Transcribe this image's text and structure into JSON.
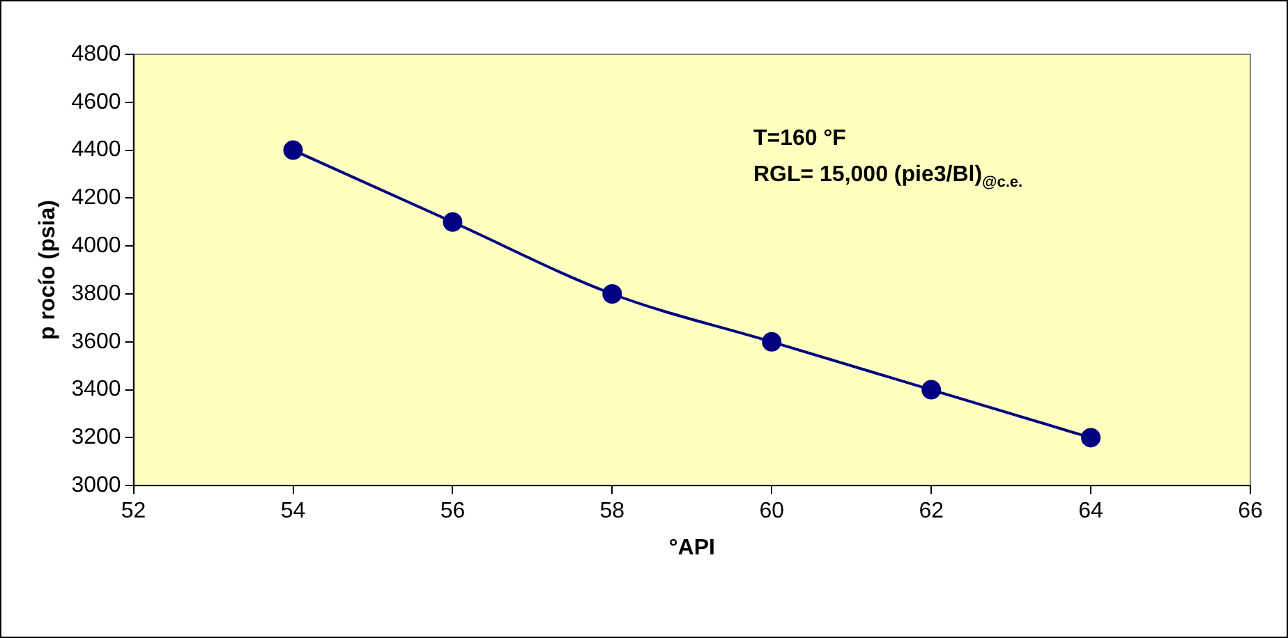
{
  "chart_data": {
    "type": "line",
    "xlabel": "°API",
    "ylabel": "p rocío (psia)",
    "x": [
      54,
      56,
      58,
      60,
      62,
      64
    ],
    "series": [
      {
        "color": "#000080",
        "values": [
          4400,
          4100,
          3800,
          3600,
          3400,
          3200
        ]
      }
    ],
    "xlim": [
      52,
      66
    ],
    "xticks": [
      52,
      54,
      56,
      58,
      60,
      62,
      64,
      66
    ],
    "ylim": [
      3000,
      4800
    ],
    "yticks": [
      3000,
      3200,
      3400,
      3600,
      3800,
      4000,
      4200,
      4400,
      4600,
      4800
    ],
    "annotations": [
      "T=160 °F",
      "RGL= 15,000 (pie3/Bl)$_{@c.e.}$"
    ],
    "grid": false,
    "legend": false,
    "marker": "circle",
    "line_style": "solid"
  }
}
